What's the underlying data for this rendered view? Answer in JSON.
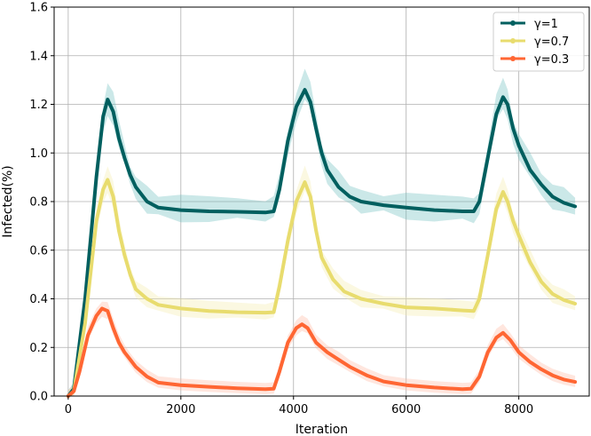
{
  "chart_data": {
    "type": "line",
    "title": "",
    "xlabel": "Iteration",
    "ylabel": "Infected(%)",
    "xlim": [
      -250,
      9250
    ],
    "ylim": [
      0,
      1.6
    ],
    "xticks": [
      0,
      2000,
      4000,
      6000,
      8000
    ],
    "xtick_labels": [
      "0",
      "2000",
      "4000",
      "6000",
      "8000"
    ],
    "yticks": [
      0.0,
      0.2,
      0.4,
      0.6,
      0.8,
      1.0,
      1.2,
      1.4,
      1.6
    ],
    "ytick_labels": [
      "0.0",
      "0.2",
      "0.4",
      "0.6",
      "0.8",
      "1.0",
      "1.2",
      "1.4",
      "1.6"
    ],
    "grid": true,
    "legend_position": "top-right",
    "series": [
      {
        "name": "γ=1",
        "color": "#005f5f",
        "band_color": "#6bbcbc",
        "points": [
          [
            0,
            0.0
          ],
          [
            100,
            0.03
          ],
          [
            300,
            0.4
          ],
          [
            500,
            0.9
          ],
          [
            620,
            1.15
          ],
          [
            700,
            1.22
          ],
          [
            800,
            1.17
          ],
          [
            900,
            1.06
          ],
          [
            1000,
            0.98
          ],
          [
            1100,
            0.91
          ],
          [
            1200,
            0.86
          ],
          [
            1400,
            0.8
          ],
          [
            1600,
            0.775
          ],
          [
            2000,
            0.765
          ],
          [
            2500,
            0.76
          ],
          [
            3000,
            0.758
          ],
          [
            3500,
            0.755
          ],
          [
            3650,
            0.76
          ],
          [
            3750,
            0.85
          ],
          [
            3900,
            1.05
          ],
          [
            4050,
            1.19
          ],
          [
            4200,
            1.26
          ],
          [
            4300,
            1.21
          ],
          [
            4400,
            1.1
          ],
          [
            4500,
            1.0
          ],
          [
            4600,
            0.93
          ],
          [
            4800,
            0.86
          ],
          [
            5000,
            0.82
          ],
          [
            5200,
            0.8
          ],
          [
            5600,
            0.785
          ],
          [
            6000,
            0.775
          ],
          [
            6500,
            0.765
          ],
          [
            7000,
            0.76
          ],
          [
            7200,
            0.76
          ],
          [
            7300,
            0.8
          ],
          [
            7450,
            0.98
          ],
          [
            7600,
            1.16
          ],
          [
            7720,
            1.23
          ],
          [
            7800,
            1.2
          ],
          [
            7900,
            1.1
          ],
          [
            8000,
            1.03
          ],
          [
            8200,
            0.93
          ],
          [
            8400,
            0.87
          ],
          [
            8600,
            0.82
          ],
          [
            8800,
            0.795
          ],
          [
            9000,
            0.78
          ]
        ]
      },
      {
        "name": "γ=0.7",
        "color": "#e8dc6e",
        "band_color": "#f3eaa8",
        "points": [
          [
            0,
            0.0
          ],
          [
            100,
            0.02
          ],
          [
            300,
            0.3
          ],
          [
            500,
            0.72
          ],
          [
            620,
            0.85
          ],
          [
            700,
            0.89
          ],
          [
            800,
            0.82
          ],
          [
            900,
            0.68
          ],
          [
            1000,
            0.58
          ],
          [
            1100,
            0.5
          ],
          [
            1200,
            0.44
          ],
          [
            1400,
            0.4
          ],
          [
            1600,
            0.375
          ],
          [
            2000,
            0.36
          ],
          [
            2500,
            0.35
          ],
          [
            3000,
            0.345
          ],
          [
            3500,
            0.343
          ],
          [
            3650,
            0.345
          ],
          [
            3750,
            0.45
          ],
          [
            3900,
            0.64
          ],
          [
            4050,
            0.8
          ],
          [
            4200,
            0.88
          ],
          [
            4300,
            0.82
          ],
          [
            4400,
            0.68
          ],
          [
            4500,
            0.57
          ],
          [
            4700,
            0.48
          ],
          [
            4900,
            0.43
          ],
          [
            5200,
            0.4
          ],
          [
            5600,
            0.38
          ],
          [
            6000,
            0.365
          ],
          [
            6500,
            0.36
          ],
          [
            7000,
            0.352
          ],
          [
            7200,
            0.35
          ],
          [
            7300,
            0.4
          ],
          [
            7450,
            0.58
          ],
          [
            7600,
            0.77
          ],
          [
            7720,
            0.84
          ],
          [
            7800,
            0.8
          ],
          [
            7900,
            0.72
          ],
          [
            8000,
            0.66
          ],
          [
            8200,
            0.55
          ],
          [
            8400,
            0.47
          ],
          [
            8600,
            0.42
          ],
          [
            8800,
            0.395
          ],
          [
            9000,
            0.38
          ]
        ]
      },
      {
        "name": "γ=0.3",
        "color": "#ff6633",
        "band_color": "#ffb8a0",
        "points": [
          [
            0,
            0.0
          ],
          [
            100,
            0.02
          ],
          [
            200,
            0.1
          ],
          [
            350,
            0.25
          ],
          [
            500,
            0.33
          ],
          [
            600,
            0.36
          ],
          [
            700,
            0.35
          ],
          [
            800,
            0.28
          ],
          [
            900,
            0.22
          ],
          [
            1000,
            0.18
          ],
          [
            1100,
            0.15
          ],
          [
            1200,
            0.12
          ],
          [
            1400,
            0.08
          ],
          [
            1600,
            0.055
          ],
          [
            2000,
            0.045
          ],
          [
            2500,
            0.038
          ],
          [
            3000,
            0.032
          ],
          [
            3500,
            0.028
          ],
          [
            3650,
            0.03
          ],
          [
            3750,
            0.1
          ],
          [
            3900,
            0.22
          ],
          [
            4050,
            0.28
          ],
          [
            4150,
            0.295
          ],
          [
            4250,
            0.28
          ],
          [
            4400,
            0.22
          ],
          [
            4600,
            0.18
          ],
          [
            4800,
            0.15
          ],
          [
            5000,
            0.12
          ],
          [
            5300,
            0.085
          ],
          [
            5600,
            0.06
          ],
          [
            6000,
            0.045
          ],
          [
            6500,
            0.035
          ],
          [
            7000,
            0.028
          ],
          [
            7150,
            0.03
          ],
          [
            7300,
            0.08
          ],
          [
            7450,
            0.18
          ],
          [
            7600,
            0.24
          ],
          [
            7720,
            0.26
          ],
          [
            7850,
            0.23
          ],
          [
            8000,
            0.18
          ],
          [
            8200,
            0.14
          ],
          [
            8400,
            0.11
          ],
          [
            8600,
            0.085
          ],
          [
            8800,
            0.068
          ],
          [
            9000,
            0.058
          ]
        ]
      }
    ]
  }
}
